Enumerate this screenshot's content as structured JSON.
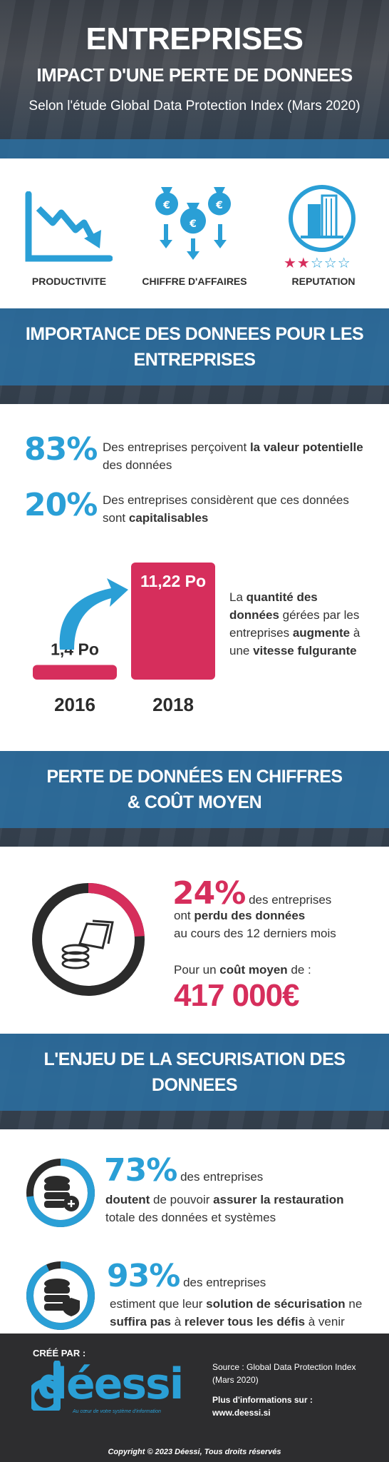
{
  "header": {
    "title": "ENTREPRISES",
    "subtitle": "IMPACT D'UNE PERTE DE DONNEES",
    "source_line": "Selon l'étude Global Data Protection Index (Mars 2020)"
  },
  "impacts": [
    {
      "label": "PRODUCTIVITE",
      "icon": "declining-chart-icon"
    },
    {
      "label": "CHIFFRE D'AFFAIRES",
      "icon": "money-bags-icon"
    },
    {
      "label": "REPUTATION",
      "icon": "building-icon",
      "stars_filled": 2,
      "stars_total": 5
    }
  ],
  "section1": {
    "title_line1": "IMPORTANCE DES DONNEES POUR LES",
    "title_line2": "ENTREPRISES",
    "stats": [
      {
        "pct": "83%",
        "text_a": "Des entreprises perçoivent ",
        "text_b": "la valeur potentielle",
        "text_c": "des données"
      },
      {
        "pct": "20%",
        "text_a": "Des entreprises considèrent que ces données",
        "text_b": "sont ",
        "text_c": "capitalisables"
      }
    ],
    "chart_data": {
      "type": "bar",
      "categories": [
        "2016",
        "2018"
      ],
      "values": [
        1.4,
        11.22
      ],
      "value_labels": [
        "1,4 Po",
        "11,22 Po"
      ],
      "unit": "Po",
      "color": "#d62e5c"
    },
    "chart_note": {
      "p1": "La ",
      "b1": "quantité des",
      "b2": "données",
      "p2": " gérées par les",
      "p3": "entreprises ",
      "b3": "augmente",
      "p4": " à",
      "p5": "une ",
      "b4": "vitesse fulgurante"
    }
  },
  "section2": {
    "title_line1": "PERTE DE DONNÉES EN CHIFFRES",
    "title_line2": "& COÛT MOYEN",
    "pct": "24%",
    "pct_tail": "des entreprises",
    "line2a": "ont ",
    "line2b": "perdu des données",
    "line3": "au cours des 12 derniers mois",
    "cost_label": "Pour un ",
    "cost_bold": "coût moyen",
    "cost_tail": " de :",
    "cost_value": "417 000€",
    "ring_fraction": 0.24
  },
  "section3": {
    "title_line1": "L'ENJEU DE LA SECURISATION DES",
    "title_line2": "DONNEES",
    "stats": [
      {
        "pct": "73%",
        "tail": "des entreprises",
        "b1": "doutent",
        "p1": " de pouvoir ",
        "b2": "assurer la restauration",
        "p2": "totale des données et systèmes",
        "ring_fraction": 0.73
      },
      {
        "pct": "93%",
        "tail": "des entreprises",
        "p1": "estiment que leur ",
        "b1": "solution de sécurisation",
        "p2": " ne",
        "b2": "suffira pas",
        "p3": " à ",
        "b3": "relever tous les défis",
        "p4": " à venir",
        "ring_fraction": 0.93
      }
    ]
  },
  "footer": {
    "created_by": "CRÉÉ PAR :",
    "logo_text": "déessi",
    "logo_tagline": "Au cœur de votre système d'information",
    "source": "Source : Global Data Protection Index",
    "source2": "(Mars 2020)",
    "more_info": "Plus d'informations sur :",
    "website": "www.deessi.si",
    "copyright": "Copyright © 2023 Déessi, Tous droits réservés"
  },
  "colors": {
    "blue": "#2a9fd6",
    "pink": "#d62e5c",
    "dark": "#2b2b2b",
    "band_blue": "#2b6ea0"
  }
}
